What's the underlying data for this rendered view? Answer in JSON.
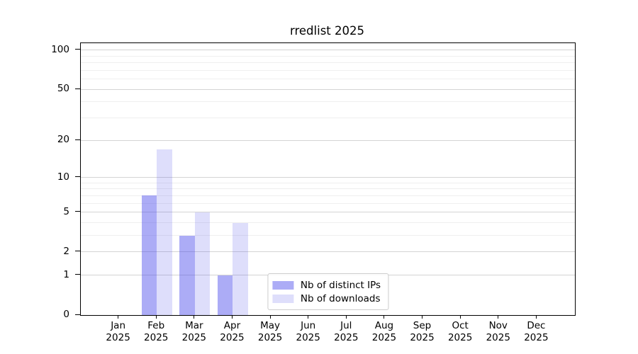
{
  "chart_data": {
    "type": "bar",
    "title": "rredlist 2025",
    "categories": [
      "Jan 2025",
      "Feb 2025",
      "Mar 2025",
      "Apr 2025",
      "May 2025",
      "Jun 2025",
      "Jul 2025",
      "Aug 2025",
      "Sep 2025",
      "Oct 2025",
      "Nov 2025",
      "Dec 2025"
    ],
    "series": [
      {
        "name": "Nb of distinct IPs",
        "color": "rgba(70,70,235,0.45)",
        "values": [
          0,
          7,
          3,
          1,
          0,
          0,
          0,
          0,
          0,
          0,
          0,
          0
        ]
      },
      {
        "name": "Nb of downloads",
        "color": "rgba(70,70,235,0.18)",
        "values": [
          0,
          17,
          5,
          4,
          0,
          0,
          0,
          0,
          0,
          0,
          0,
          0
        ]
      }
    ],
    "xlabel": "",
    "ylabel": "",
    "yscale": "log1p",
    "ylim": [
      0,
      113
    ],
    "yticks": [
      0,
      1,
      2,
      5,
      10,
      20,
      50,
      100
    ],
    "yticks_minor": [
      3,
      4,
      6,
      7,
      8,
      9,
      30,
      40,
      60,
      70,
      80,
      90
    ],
    "grid": "both",
    "legend_position": "lower center"
  }
}
